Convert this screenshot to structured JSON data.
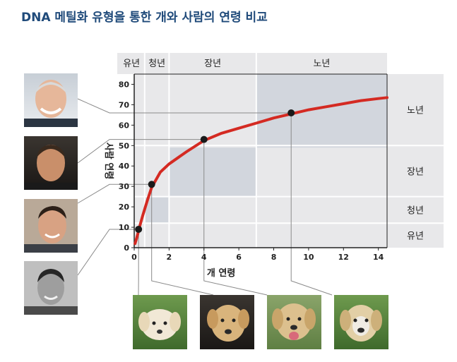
{
  "title": "DNA 메틸화 유형을 통한 개와 사람의 연령 비교",
  "colors": {
    "curve": "#d42a22",
    "band": "#e8e8ea",
    "region": "#d2d6dd",
    "grid": "#ffffff",
    "title": "#1f4a7a"
  },
  "chart_data": {
    "type": "line",
    "title": "DNA 메틸화 유형을 통한 개와 사람의 연령 비교",
    "xlabel": "개 연령",
    "ylabel": "사람 연령",
    "xlim": [
      0,
      14.5
    ],
    "ylim": [
      0,
      85
    ],
    "xticks": [
      0,
      2,
      4,
      6,
      8,
      10,
      12,
      14
    ],
    "yticks": [
      0,
      10,
      20,
      30,
      40,
      50,
      60,
      70,
      80
    ],
    "grid": true,
    "curve": {
      "x": [
        0.05,
        0.1,
        0.2,
        0.3,
        0.5,
        0.75,
        1,
        1.5,
        2,
        3,
        4,
        5,
        6,
        7,
        8,
        9,
        10,
        11,
        12,
        13,
        14,
        14.5
      ],
      "y": [
        2,
        3.5,
        6.5,
        10,
        16,
        23,
        29.5,
        37,
        41,
        47,
        52.5,
        56,
        58.5,
        61,
        63.5,
        65.5,
        67.5,
        69,
        70.5,
        72,
        73,
        73.5
      ]
    },
    "highlight_points": [
      {
        "x": 0.25,
        "y": 9
      },
      {
        "x": 1,
        "y": 31
      },
      {
        "x": 4,
        "y": 53
      },
      {
        "x": 9,
        "y": 66
      }
    ],
    "top_labels": [
      {
        "label": "유년",
        "x_range": [
          0,
          0.5
        ]
      },
      {
        "label": "청년",
        "x_range": [
          0.6,
          2
        ]
      },
      {
        "label": "장년",
        "x_range": [
          2,
          7
        ]
      },
      {
        "label": "노년",
        "x_range": [
          7,
          14.5
        ]
      }
    ],
    "side_labels": [
      {
        "label": "노년",
        "y_range": [
          50,
          85
        ]
      },
      {
        "label": "장년",
        "y_range": [
          25,
          50
        ]
      },
      {
        "label": "청년",
        "y_range": [
          12,
          25
        ]
      },
      {
        "label": "유년",
        "y_range": [
          0,
          12
        ]
      }
    ],
    "regions": [
      {
        "x_range": [
          0.6,
          2
        ],
        "y_range": [
          12,
          25
        ]
      },
      {
        "x_range": [
          2,
          7
        ],
        "y_range": [
          25,
          49
        ]
      },
      {
        "x_range": [
          7,
          14.5
        ],
        "y_range": [
          49,
          85
        ]
      }
    ]
  },
  "photos": {
    "humans": [
      "elder-man-photo",
      "middle-aged-man-photo",
      "young-man-photo",
      "boy-photo"
    ],
    "dogs": [
      "puppy-photo",
      "young-dog-photo",
      "adult-dog-photo",
      "old-dog-photo"
    ]
  }
}
